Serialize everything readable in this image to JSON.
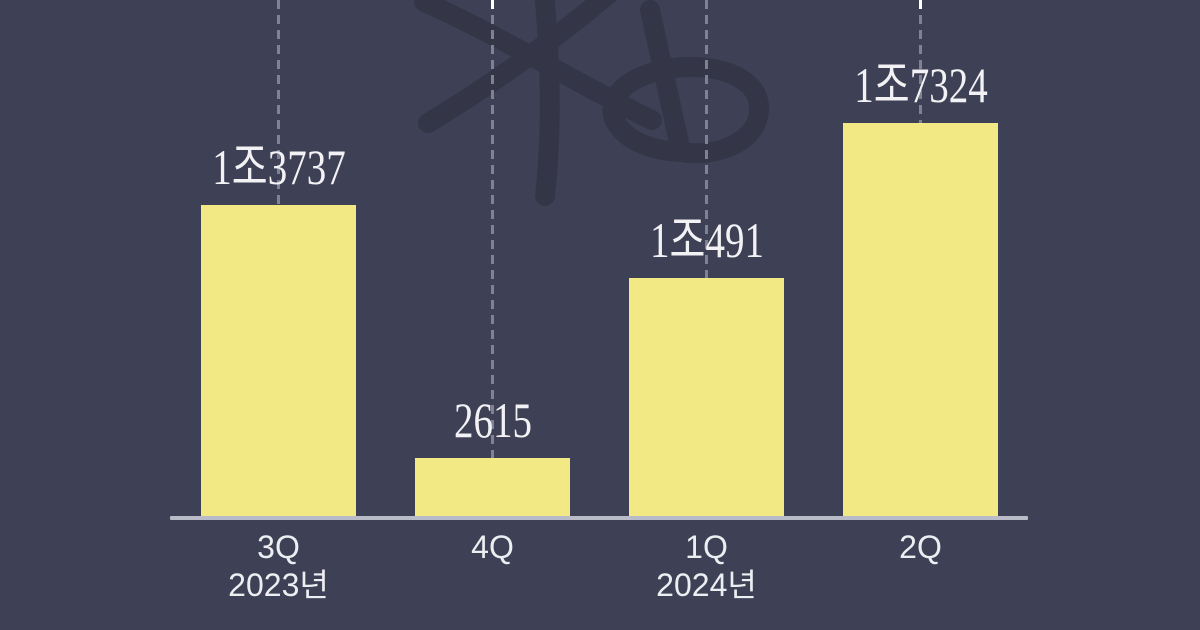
{
  "chart_data": {
    "type": "bar",
    "title": "",
    "xlabel": "",
    "ylabel": "",
    "legend": "none",
    "grid": "vertical dashed gridlines at each bar center, full height",
    "ylim": [
      0,
      18600
    ],
    "categories": [
      {
        "quarter": "3Q",
        "year": "2023년"
      },
      {
        "quarter": "4Q",
        "year": ""
      },
      {
        "quarter": "1Q",
        "year": "2024년"
      },
      {
        "quarter": "2Q",
        "year": ""
      }
    ],
    "values": [
      13737,
      2615,
      10491,
      17324
    ],
    "value_labels": [
      "1조3737",
      "2615",
      "1조491",
      "1조7324"
    ]
  },
  "watermark": {
    "name": "kb-logo",
    "description": "large hand-drawn dark asterisk + lowercase b, top center-right, tone-on-tone"
  },
  "colors": {
    "background": "#3e4055",
    "bar": "#f2e884",
    "value_label": "#f2f1f4",
    "axis_label": "#edeef2",
    "axis_line": "#b9bcc8",
    "dashed_line": "#8a8e9e",
    "white_cap_dash": "#ffffff",
    "watermark": "#343648"
  }
}
